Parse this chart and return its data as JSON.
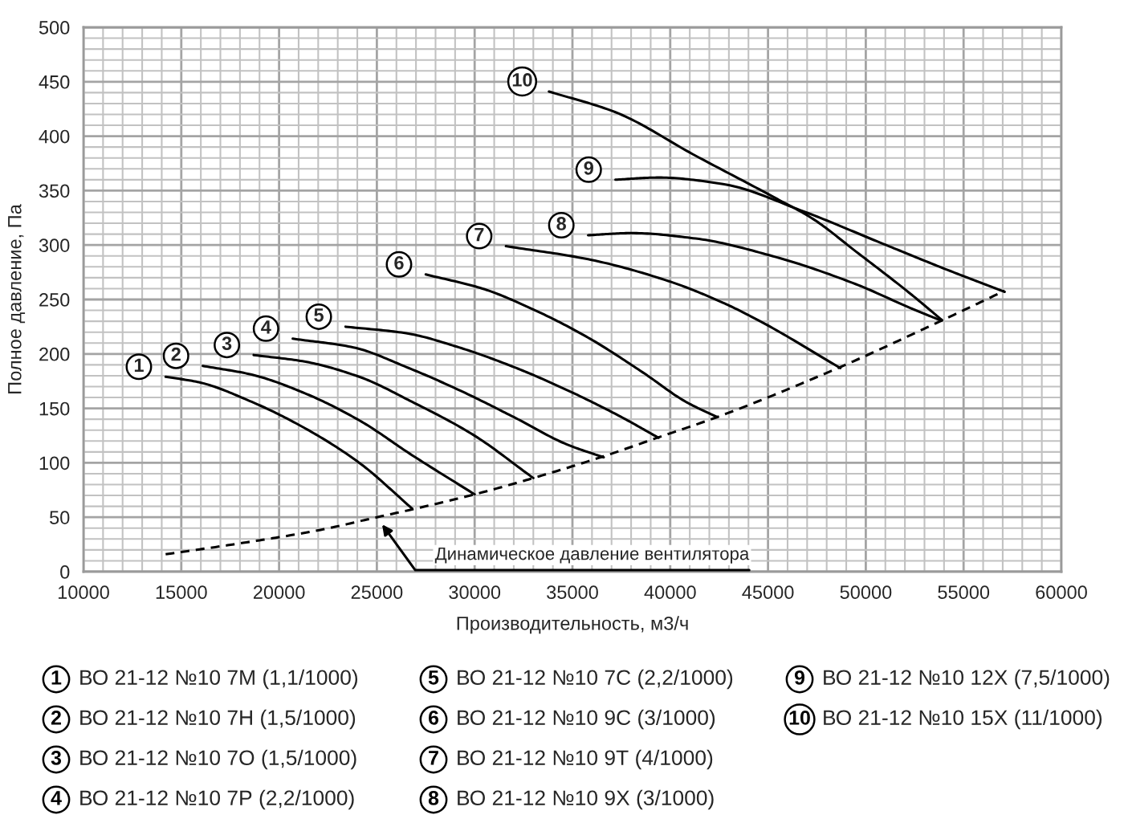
{
  "chart_data": {
    "type": "line",
    "xlabel": "Производительность, м3/ч",
    "ylabel": "Полное давление, Па",
    "xlim": [
      10000,
      60000
    ],
    "xticks": [
      10000,
      15000,
      20000,
      25000,
      30000,
      35000,
      40000,
      45000,
      50000,
      55000,
      60000
    ],
    "ylim": [
      0,
      500
    ],
    "yticks": [
      0,
      50,
      100,
      150,
      200,
      250,
      300,
      350,
      400,
      450,
      500
    ],
    "grid": true,
    "legend": "bottom",
    "line_style": "solid",
    "series": [
      {
        "name": "ВО 21-12 №10 7М (1,1/1000)",
        "color": "#000000",
        "x": [
          14200,
          15900,
          18600,
          21300,
          24100,
          26800
        ],
        "values": [
          179,
          174,
          156,
          132,
          100,
          58
        ]
      },
      {
        "name": "ВО 21-12 №10 7Н (1,5/1000)",
        "color": "#000000",
        "x": [
          16100,
          18600,
          21300,
          24100,
          26800,
          30000
        ],
        "values": [
          189,
          181,
          164,
          139,
          107,
          71
        ]
      },
      {
        "name": "ВО 21-12 №10 7О (1,5/1000)",
        "color": "#000000",
        "x": [
          18700,
          21300,
          24100,
          26800,
          29900,
          33000
        ],
        "values": [
          199,
          193,
          179,
          156,
          126,
          86
        ]
      },
      {
        "name": "ВО 21-12 №10 7Р (2,2/1000)",
        "color": "#000000",
        "x": [
          20700,
          23800,
          26500,
          29300,
          32000,
          34700,
          36600
        ],
        "values": [
          214,
          206,
          188,
          166,
          142,
          117,
          105
        ]
      },
      {
        "name": "ВО 21-12 №10 7С (2,2/1000)",
        "color": "#000000",
        "x": [
          23400,
          26500,
          29200,
          32000,
          34700,
          37400,
          39400
        ],
        "values": [
          225,
          219,
          206,
          188,
          167,
          143,
          123
        ]
      },
      {
        "name": "ВО 21-12 №10 9С (3/1000)",
        "color": "#000000",
        "x": [
          27500,
          30400,
          33100,
          35800,
          38600,
          40800,
          42400
        ],
        "values": [
          273,
          260,
          240,
          215,
          183,
          156,
          142
        ]
      },
      {
        "name": "ВО 21-12 №10 9Т (4/1000)",
        "color": "#000000",
        "x": [
          31600,
          35800,
          39900,
          42700,
          44600,
          48700
        ],
        "values": [
          299,
          287,
          267,
          247,
          230,
          187
        ]
      },
      {
        "name": "ВО 21-12 №10 9Х (3/1000)",
        "color": "#000000",
        "x": [
          35800,
          38000,
          41300,
          45400,
          49500,
          52300,
          53800
        ],
        "values": [
          309,
          311,
          306,
          289,
          264,
          242,
          231
        ]
      },
      {
        "name": "ВО 21-12 №10 12Х (7,5/1000)",
        "color": "#000000",
        "x": [
          37200,
          39400,
          42700,
          46800,
          50900,
          54200,
          57100
        ],
        "values": [
          360,
          362,
          356,
          331,
          301,
          277,
          257
        ]
      },
      {
        "name": "ВО 21-12 №10 15Х (11/1000)",
        "color": "#000000",
        "x": [
          33800,
          37200,
          41300,
          45400,
          47300,
          49500,
          52300,
          53900
        ],
        "values": [
          441,
          422,
          382,
          343,
          324,
          294,
          255,
          231
        ]
      },
      {
        "color": "#000000",
        "line_style": "dashed",
        "x": [
          14200,
          18000,
          22000,
          25000,
          27000,
          30000,
          33000,
          36600,
          39500,
          42400,
          48700,
          53800,
          57100
        ],
        "values": [
          16,
          26,
          38,
          50,
          58,
          71,
          86,
          106,
          124,
          142,
          188,
          230,
          258
        ]
      }
    ],
    "annotations": [
      {
        "text": "1",
        "x": 14200,
        "y": 179
      },
      {
        "text": "2",
        "x": 16100,
        "y": 189
      },
      {
        "text": "3",
        "x": 18700,
        "y": 199
      },
      {
        "text": "4",
        "x": 20700,
        "y": 214
      },
      {
        "text": "5",
        "x": 23400,
        "y": 225
      },
      {
        "text": "6",
        "x": 27500,
        "y": 273
      },
      {
        "text": "7",
        "x": 31600,
        "y": 299
      },
      {
        "text": "8",
        "x": 35800,
        "y": 309
      },
      {
        "text": "9",
        "x": 37200,
        "y": 360
      },
      {
        "text": "10",
        "x": 33800,
        "y": 441
      },
      {
        "text": "Динамическое давление вентилятора",
        "x": 25000,
        "y": 50
      }
    ]
  }
}
